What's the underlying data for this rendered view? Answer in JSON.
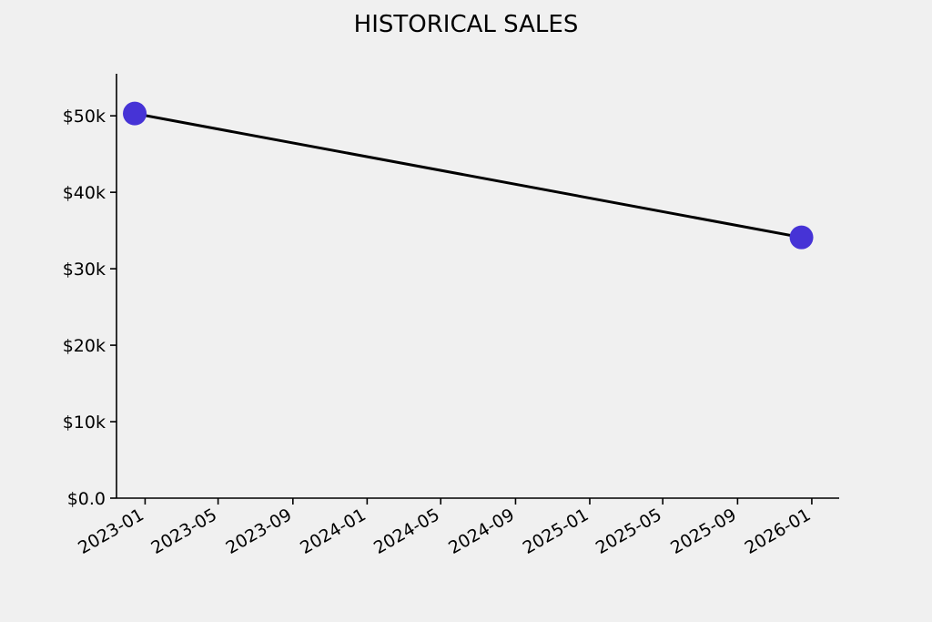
{
  "chart_data": {
    "type": "line",
    "title": "HISTORICAL SALES",
    "xlabel": "",
    "ylabel": "",
    "x_axis_type": "date",
    "xlim": [
      "2022-11-15",
      "2026-02-15"
    ],
    "ylim": [
      0,
      55500
    ],
    "x_ticks": [
      {
        "value": "2023-01-01",
        "label": "2023-01"
      },
      {
        "value": "2023-05-01",
        "label": "2023-05"
      },
      {
        "value": "2023-09-01",
        "label": "2023-09"
      },
      {
        "value": "2024-01-01",
        "label": "2024-01"
      },
      {
        "value": "2024-05-01",
        "label": "2024-05"
      },
      {
        "value": "2024-09-01",
        "label": "2024-09"
      },
      {
        "value": "2025-01-01",
        "label": "2025-01"
      },
      {
        "value": "2025-05-01",
        "label": "2025-05"
      },
      {
        "value": "2025-09-01",
        "label": "2025-09"
      },
      {
        "value": "2026-01-01",
        "label": "2026-01"
      }
    ],
    "y_ticks": [
      {
        "value": 0,
        "label": "$0.0"
      },
      {
        "value": 10000,
        "label": "$10k"
      },
      {
        "value": 20000,
        "label": "$20k"
      },
      {
        "value": 30000,
        "label": "$30k"
      },
      {
        "value": 40000,
        "label": "$40k"
      },
      {
        "value": 50000,
        "label": "$50k"
      }
    ],
    "grid": false,
    "series": [
      {
        "x": [
          "2022-12-15",
          "2025-12-15"
        ],
        "y": [
          50300,
          34100
        ],
        "line_color": "#000000",
        "marker_color": "#4633d6"
      }
    ]
  }
}
